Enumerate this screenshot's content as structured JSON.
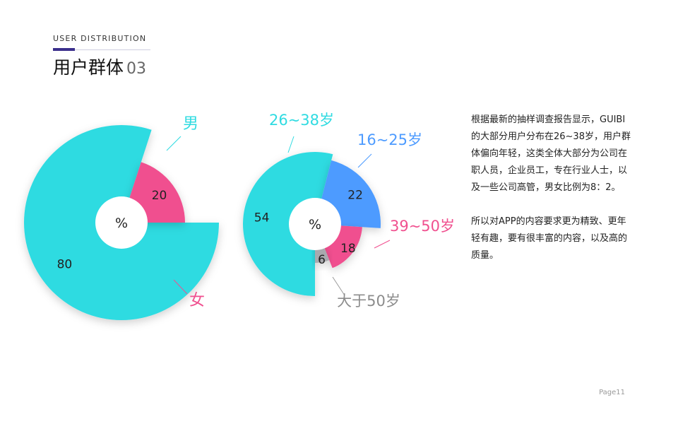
{
  "header": {
    "subtitle": "USER DISTRIBUTION",
    "title": "用户群体",
    "title_number": "03"
  },
  "chart_data": [
    {
      "type": "pie",
      "center_label": "%",
      "slices": [
        {
          "label": "男",
          "value": 80,
          "color": "#2fdbe1"
        },
        {
          "label": "女",
          "value": 20,
          "color": "#f0508f"
        }
      ]
    },
    {
      "type": "pie",
      "center_label": "%",
      "slices": [
        {
          "label": "26~38岁",
          "value": 54,
          "color": "#2fdbe1"
        },
        {
          "label": "16~25岁",
          "value": 22,
          "color": "#4d9bff"
        },
        {
          "label": "39~50岁",
          "value": 18,
          "color": "#f0508f"
        },
        {
          "label": "大于50岁",
          "value": 6,
          "color": "#a9a9ae"
        }
      ]
    }
  ],
  "description": {
    "paragraph1": "根据最新的抽样调查报告显示，GUIBI的大部分用户分布在26~38岁，用户群体偏向年轻，这类全体大部分为公司在职人员，企业员工，专在行业人士，以及一些公司高管，男女比例为8：2。",
    "paragraph2": "所以对APP的内容要求更为精致、更年轻有趣，要有很丰富的内容，以及高的质量。"
  },
  "footer": {
    "page": "Page11"
  }
}
